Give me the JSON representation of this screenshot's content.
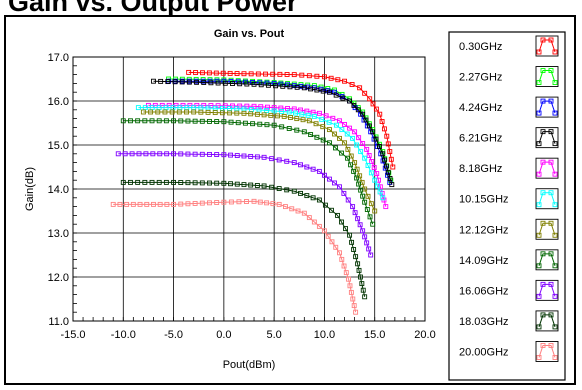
{
  "header": {
    "title": "Gain vs. Output Power"
  },
  "chart_data": {
    "type": "line",
    "title": "Gain vs. Pout",
    "xlabel": "Pout(dBm)",
    "ylabel": "Gain(dB)",
    "xlim": [
      -15,
      20
    ],
    "ylim": [
      11,
      17
    ],
    "xticks": [
      "-15.0",
      "-10.0",
      "-5.0",
      "0.0",
      "5.0",
      "10.0",
      "15.0",
      "20.0"
    ],
    "yticks": [
      "11.0",
      "12.0",
      "13.0",
      "14.0",
      "15.0",
      "16.0",
      "17.0"
    ],
    "grid": true,
    "legend": "right",
    "series": [
      {
        "name": "0.30GHz",
        "color": "#ff0000",
        "x": [
          -3.5,
          2,
          7,
          10,
          12,
          13.5,
          14.5,
          15.5,
          16.2,
          16.8
        ],
        "y": [
          16.65,
          16.62,
          16.6,
          16.55,
          16.45,
          16.3,
          16.05,
          15.7,
          15.2,
          14.5
        ]
      },
      {
        "name": "2.27GHz",
        "color": "#00ff00",
        "x": [
          -5.5,
          0,
          5,
          9,
          11,
          12.5,
          13.8,
          14.8,
          15.8,
          16.6
        ],
        "y": [
          16.5,
          16.48,
          16.42,
          16.35,
          16.25,
          16.05,
          15.75,
          15.35,
          14.85,
          14.2
        ]
      },
      {
        "name": "4.24GHz",
        "color": "#0000ff",
        "x": [
          -5.5,
          0,
          5,
          9,
          11,
          12.5,
          13.6,
          14.6,
          15.6,
          16.5
        ],
        "y": [
          16.45,
          16.45,
          16.4,
          16.3,
          16.2,
          16.0,
          15.7,
          15.3,
          14.8,
          14.15
        ]
      },
      {
        "name": "6.21GHz",
        "color": "#000000",
        "x": [
          -7,
          -2,
          3,
          8,
          10.5,
          12.5,
          13.8,
          14.8,
          15.8,
          16.7
        ],
        "y": [
          16.45,
          16.42,
          16.38,
          16.3,
          16.2,
          16.0,
          15.7,
          15.3,
          14.8,
          14.1
        ]
      },
      {
        "name": "8.18GHz",
        "color": "#ff00ff",
        "x": [
          -7.5,
          -2,
          3,
          7,
          9.5,
          11.5,
          13,
          14.2,
          15.2,
          16.1
        ],
        "y": [
          15.9,
          15.9,
          15.88,
          15.82,
          15.72,
          15.55,
          15.3,
          14.9,
          14.35,
          13.6
        ]
      },
      {
        "name": "10.15GHz",
        "color": "#00ffff",
        "x": [
          -8.5,
          -3,
          2,
          6.5,
          9,
          11.2,
          12.8,
          14,
          15,
          15.8
        ],
        "y": [
          15.85,
          15.85,
          15.82,
          15.75,
          15.65,
          15.45,
          15.15,
          14.7,
          14.2,
          13.8
        ]
      },
      {
        "name": "12.12GHz",
        "color": "#808000",
        "x": [
          -8,
          -3,
          2,
          6,
          8.5,
          10.5,
          12,
          13,
          14,
          15
        ],
        "y": [
          15.75,
          15.75,
          15.72,
          15.65,
          15.55,
          15.35,
          15.05,
          14.6,
          14.0,
          13.5
        ]
      },
      {
        "name": "14.09GHz",
        "color": "#006600",
        "x": [
          -10,
          -5,
          0,
          5,
          8,
          10.5,
          12.3,
          13.2,
          14,
          14.8
        ],
        "y": [
          15.55,
          15.55,
          15.53,
          15.45,
          15.3,
          15.05,
          14.7,
          14.25,
          13.7,
          13.2
        ]
      },
      {
        "name": "16.06GHz",
        "color": "#8000ff",
        "x": [
          -10.5,
          -5,
          0,
          4,
          7,
          9.5,
          11.5,
          12.8,
          13.8,
          14.6
        ],
        "y": [
          14.8,
          14.8,
          14.78,
          14.72,
          14.6,
          14.4,
          14.05,
          13.6,
          13.05,
          12.5
        ]
      },
      {
        "name": "18.03GHz",
        "color": "#003300",
        "x": [
          -10,
          -5,
          0,
          4,
          7,
          9.5,
          11.3,
          12.5,
          13.3,
          14
        ],
        "y": [
          14.15,
          14.15,
          14.13,
          14.07,
          13.95,
          13.75,
          13.4,
          12.95,
          12.3,
          11.55
        ]
      },
      {
        "name": "20.00GHz",
        "color": "#ff8080",
        "x": [
          -11,
          -5,
          0,
          3,
          5.5,
          8,
          10,
          11.5,
          12.4,
          13.1
        ],
        "y": [
          13.65,
          13.65,
          13.7,
          13.72,
          13.65,
          13.45,
          13.05,
          12.55,
          11.95,
          11.2
        ]
      }
    ]
  }
}
